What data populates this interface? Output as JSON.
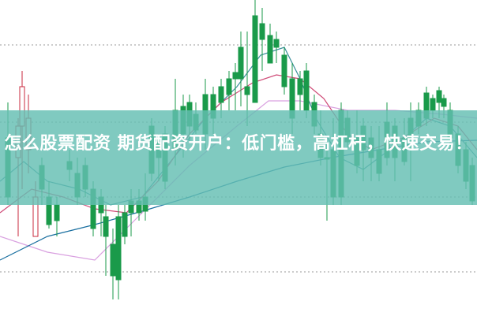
{
  "headline": "怎么股票配资 期货配资开户：低门槛，高杠杆，快速交易！",
  "colors": {
    "up": "#c8283c",
    "down": "#1a9a4a",
    "banner": "#64beb2",
    "text": "#ffffff"
  }
}
